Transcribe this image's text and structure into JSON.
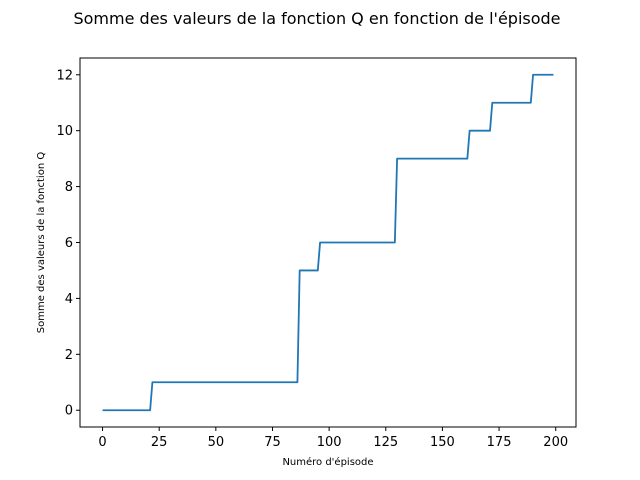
{
  "chart_data": {
    "type": "line",
    "title": "Somme des valeurs de la fonction Q en fonction de l'épisode",
    "xlabel": "Numéro d'épisode",
    "ylabel": "Somme des valeurs de la fonction Q",
    "xlim": [
      -9.95,
      208.95
    ],
    "ylim": [
      -0.6,
      12.6
    ],
    "xticks": [
      0,
      25,
      50,
      75,
      100,
      125,
      150,
      175,
      200
    ],
    "yticks": [
      0,
      2,
      4,
      6,
      8,
      10,
      12
    ],
    "grid": false,
    "color": "#1f77b4",
    "series": [
      {
        "points": [
          [
            0,
            0
          ],
          [
            21,
            0
          ],
          [
            22,
            1
          ],
          [
            86,
            1
          ],
          [
            87,
            5
          ],
          [
            95,
            5
          ],
          [
            96,
            6
          ],
          [
            129,
            6
          ],
          [
            130,
            9
          ],
          [
            161,
            9
          ],
          [
            162,
            10
          ],
          [
            171,
            10
          ],
          [
            172,
            11
          ],
          [
            189,
            11
          ],
          [
            190,
            12
          ],
          [
            199,
            12
          ]
        ]
      }
    ]
  }
}
